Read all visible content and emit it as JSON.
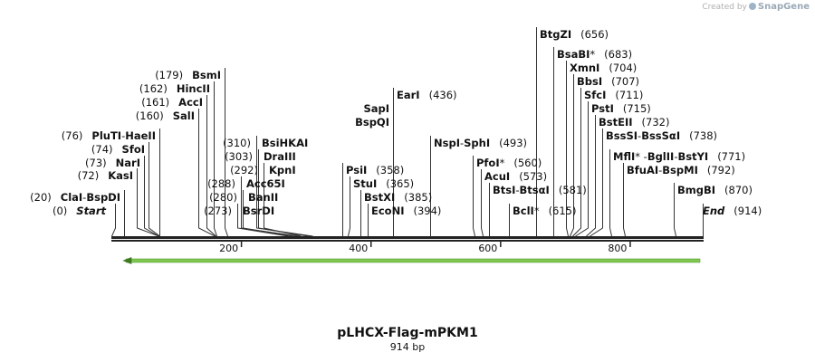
{
  "brand": {
    "created_by": "Created by",
    "product": "SnapGene"
  },
  "plasmid": {
    "name": "pLHCX-Flag-mPKM1",
    "size_label": "914 bp",
    "length": 914
  },
  "ruler": {
    "ticks": [
      200,
      400,
      600,
      800
    ]
  },
  "feature": {
    "start": 20,
    "end": 914,
    "direction": "reverse",
    "color": "#7ec850"
  },
  "sites": [
    {
      "side": "left",
      "pos": 0,
      "pos_label": "(0)",
      "parts": [
        {
          "t": "Start",
          "italic": true
        }
      ]
    },
    {
      "side": "left",
      "pos": 20,
      "pos_label": "(20)",
      "parts": [
        {
          "t": "ClaI"
        },
        {
          "t": " - ",
          "sep": true
        },
        {
          "t": "BspDI"
        }
      ]
    },
    {
      "side": "left",
      "pos": 72,
      "pos_label": "(72)",
      "parts": [
        {
          "t": "KasI"
        }
      ]
    },
    {
      "side": "left",
      "pos": 73,
      "pos_label": "(73)",
      "parts": [
        {
          "t": "NarI"
        }
      ]
    },
    {
      "side": "left",
      "pos": 74,
      "pos_label": "(74)",
      "parts": [
        {
          "t": "SfoI"
        }
      ]
    },
    {
      "side": "left",
      "pos": 76,
      "pos_label": "(76)",
      "parts": [
        {
          "t": "PluTI"
        },
        {
          "t": " - ",
          "sep": true
        },
        {
          "t": "HaeII"
        }
      ]
    },
    {
      "side": "left",
      "pos": 160,
      "pos_label": "(160)",
      "parts": [
        {
          "t": "SalI"
        }
      ]
    },
    {
      "side": "left",
      "pos": 161,
      "pos_label": "(161)",
      "parts": [
        {
          "t": "AccI"
        }
      ]
    },
    {
      "side": "left",
      "pos": 162,
      "pos_label": "(162)",
      "parts": [
        {
          "t": "HincII"
        }
      ]
    },
    {
      "side": "left",
      "pos": 179,
      "pos_label": "(179)",
      "parts": [
        {
          "t": "BsmI"
        }
      ]
    },
    {
      "side": "right",
      "pos": 273,
      "pos_label": "(273)",
      "parts": [
        {
          "t": "BsrDI"
        }
      ]
    },
    {
      "side": "right",
      "pos": 280,
      "pos_label": "(280)",
      "parts": [
        {
          "t": "BanII"
        }
      ]
    },
    {
      "side": "right",
      "pos": 288,
      "pos_label": "(288)",
      "parts": [
        {
          "t": "Acc65I"
        }
      ]
    },
    {
      "side": "right",
      "pos": 292,
      "pos_label": "(292)",
      "parts": [
        {
          "t": "KpnI"
        }
      ]
    },
    {
      "side": "right",
      "pos": 303,
      "pos_label": "(303)",
      "parts": [
        {
          "t": "DraIII"
        }
      ]
    },
    {
      "side": "right",
      "pos": 310,
      "pos_label": "(310)",
      "parts": [
        {
          "t": "BsiHKAI"
        }
      ]
    },
    {
      "side": "left",
      "pos": 358,
      "pos_label": "(358)",
      "parts": [
        {
          "t": "PsiI"
        }
      ]
    },
    {
      "side": "left",
      "pos": 365,
      "pos_label": "(365)",
      "parts": [
        {
          "t": "StuI"
        }
      ]
    },
    {
      "side": "left",
      "pos": 385,
      "pos_label": "(385)",
      "parts": [
        {
          "t": "BstXI"
        }
      ]
    },
    {
      "side": "left",
      "pos": 394,
      "pos_label": "(394)",
      "parts": [
        {
          "t": "EcoNI"
        }
      ]
    },
    {
      "side": "left",
      "pos": 436,
      "pos_label": "(436)",
      "parts": [
        {
          "t": "EarI"
        }
      ]
    },
    {
      "side": "left",
      "pos": 436,
      "pos_label": "",
      "parts": [
        {
          "t": "SapI"
        }
      ]
    },
    {
      "side": "left",
      "pos": 436,
      "pos_label": "",
      "parts": [
        {
          "t": "BspQI"
        }
      ]
    },
    {
      "side": "left",
      "pos": 493,
      "pos_label": "(493)",
      "parts": [
        {
          "t": "NspI"
        },
        {
          "t": " - ",
          "sep": true
        },
        {
          "t": "SphI"
        }
      ]
    },
    {
      "side": "left",
      "pos": 560,
      "pos_label": "(560)",
      "parts": [
        {
          "t": "PfoI"
        },
        {
          "t": " *",
          "sep": true
        }
      ]
    },
    {
      "side": "left",
      "pos": 573,
      "pos_label": "(573)",
      "parts": [
        {
          "t": "AcuI"
        }
      ]
    },
    {
      "side": "left",
      "pos": 581,
      "pos_label": "(581)",
      "parts": [
        {
          "t": "BtsI"
        },
        {
          "t": " - ",
          "sep": true
        },
        {
          "t": "BtsαI"
        }
      ]
    },
    {
      "side": "left",
      "pos": 615,
      "pos_label": "(615)",
      "parts": [
        {
          "t": "BclI"
        },
        {
          "t": " *",
          "sep": true
        }
      ]
    },
    {
      "side": "left",
      "pos": 656,
      "pos_label": "(656)",
      "parts": [
        {
          "t": "BtgZI"
        }
      ]
    },
    {
      "side": "left",
      "pos": 683,
      "pos_label": "(683)",
      "parts": [
        {
          "t": "BsaBI"
        },
        {
          "t": " *",
          "sep": true
        }
      ]
    },
    {
      "side": "left",
      "pos": 704,
      "pos_label": "(704)",
      "parts": [
        {
          "t": "XmnI"
        }
      ]
    },
    {
      "side": "left",
      "pos": 707,
      "pos_label": "(707)",
      "parts": [
        {
          "t": "BbsI"
        }
      ]
    },
    {
      "side": "left",
      "pos": 711,
      "pos_label": "(711)",
      "parts": [
        {
          "t": "SfcI"
        }
      ]
    },
    {
      "side": "left",
      "pos": 715,
      "pos_label": "(715)",
      "parts": [
        {
          "t": "PstI"
        }
      ]
    },
    {
      "side": "left",
      "pos": 732,
      "pos_label": "(732)",
      "parts": [
        {
          "t": "BstEII"
        }
      ]
    },
    {
      "side": "left",
      "pos": 738,
      "pos_label": "(738)",
      "parts": [
        {
          "t": "BssSI"
        },
        {
          "t": " - ",
          "sep": true
        },
        {
          "t": "BssSαI"
        }
      ]
    },
    {
      "side": "left",
      "pos": 771,
      "pos_label": "(771)",
      "parts": [
        {
          "t": "MflI"
        },
        {
          "t": " * - ",
          "sep": true
        },
        {
          "t": "BglII"
        },
        {
          "t": " - ",
          "sep": true
        },
        {
          "t": "BstYI"
        }
      ]
    },
    {
      "side": "left",
      "pos": 792,
      "pos_label": "(792)",
      "parts": [
        {
          "t": "BfuAI"
        },
        {
          "t": " - ",
          "sep": true
        },
        {
          "t": "BspMI"
        }
      ]
    },
    {
      "side": "left",
      "pos": 870,
      "pos_label": "(870)",
      "parts": [
        {
          "t": "BmgBI"
        }
      ]
    },
    {
      "side": "left",
      "pos": 914,
      "pos_label": "(914)",
      "parts": [
        {
          "t": "End",
          "italic": true
        }
      ]
    }
  ]
}
